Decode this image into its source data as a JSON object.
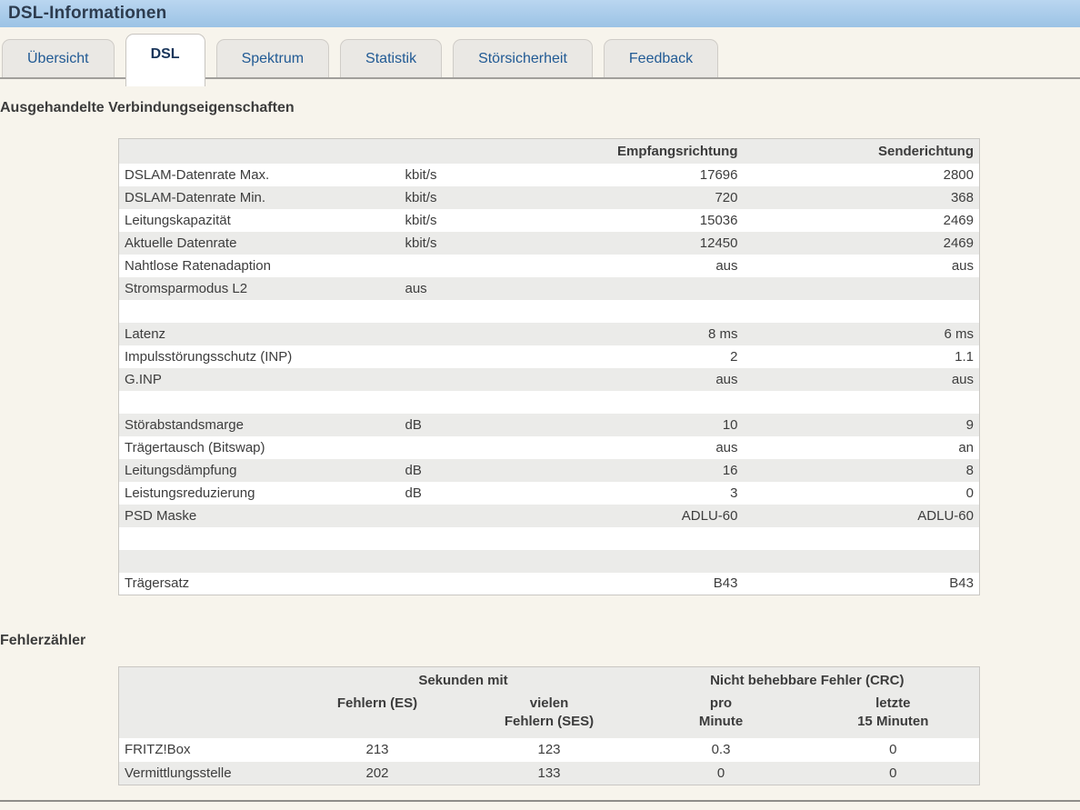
{
  "page": {
    "title": "DSL-Informationen"
  },
  "colors": {
    "header_band_top": "#bad6f0",
    "header_band_bottom": "#9cc3e5",
    "page_background": "#f7f4ec",
    "tab_text": "#215a94",
    "active_tab_text": "#19355a",
    "table_alt_row": "#ebebe9",
    "table_border": "#c9c7c3",
    "body_text": "#3d3d3d"
  },
  "tabs": [
    {
      "label": "Übersicht",
      "active": false
    },
    {
      "label": "DSL",
      "active": true
    },
    {
      "label": "Spektrum",
      "active": false
    },
    {
      "label": "Statistik",
      "active": false
    },
    {
      "label": "Störsicherheit",
      "active": false
    },
    {
      "label": "Feedback",
      "active": false
    }
  ],
  "connection_section": {
    "heading": "Ausgehandelte Verbindungseigenschaften",
    "table": {
      "headers": {
        "receive": "Empfangsrichtung",
        "send": "Senderichtung"
      },
      "rows": [
        {
          "label": "DSLAM-Datenrate Max.",
          "unit": "kbit/s",
          "receive": "17696",
          "send": "2800"
        },
        {
          "label": "DSLAM-Datenrate Min.",
          "unit": "kbit/s",
          "receive": "720",
          "send": "368"
        },
        {
          "label": "Leitungskapazität",
          "unit": "kbit/s",
          "receive": "15036",
          "send": "2469"
        },
        {
          "label": "Aktuelle Datenrate",
          "unit": "kbit/s",
          "receive": "12450",
          "send": "2469"
        },
        {
          "label": "Nahtlose Ratenadaption",
          "unit": "",
          "receive": "aus",
          "send": "aus"
        },
        {
          "label": "Stromsparmodus L2",
          "unit": "aus",
          "receive": "",
          "send": ""
        },
        {
          "label": "",
          "unit": "",
          "receive": "",
          "send": ""
        },
        {
          "label": "Latenz",
          "unit": "",
          "receive": "8 ms",
          "send": "6 ms"
        },
        {
          "label": "Impulsstörungsschutz (INP)",
          "unit": "",
          "receive": "2",
          "send": "1.1"
        },
        {
          "label": "G.INP",
          "unit": "",
          "receive": "aus",
          "send": "aus"
        },
        {
          "label": "",
          "unit": "",
          "receive": "",
          "send": ""
        },
        {
          "label": "Störabstandsmarge",
          "unit": "dB",
          "receive": "10",
          "send": "9"
        },
        {
          "label": "Trägertausch (Bitswap)",
          "unit": "",
          "receive": "aus",
          "send": "an"
        },
        {
          "label": "Leitungsdämpfung",
          "unit": "dB",
          "receive": "16",
          "send": "8"
        },
        {
          "label": "Leistungsreduzierung",
          "unit": "dB",
          "receive": "3",
          "send": "0"
        },
        {
          "label": "PSD Maske",
          "unit": "",
          "receive": "ADLU-60",
          "send": "ADLU-60"
        },
        {
          "label": "",
          "unit": "",
          "receive": "",
          "send": ""
        },
        {
          "label": "",
          "unit": "",
          "receive": "",
          "send": ""
        },
        {
          "label": "Trägersatz",
          "unit": "",
          "receive": "B43",
          "send": "B43"
        }
      ]
    }
  },
  "error_section": {
    "heading": "Fehlerzähler",
    "table": {
      "group_headers": {
        "seconds": "Sekunden mit",
        "crc": "Nicht behebbare Fehler (CRC)"
      },
      "col_headers": {
        "es": "Fehlern (ES)",
        "ses": "vielen\nFehlern (SES)",
        "per_minute": "pro\nMinute",
        "last_15": "letzte\n15 Minuten"
      },
      "rows": [
        {
          "label": "FRITZ!Box",
          "es": "213",
          "ses": "123",
          "per_minute": "0.3",
          "last_15": "0"
        },
        {
          "label": "Vermittlungsstelle",
          "es": "202",
          "ses": "133",
          "per_minute": "0",
          "last_15": "0"
        }
      ]
    }
  }
}
